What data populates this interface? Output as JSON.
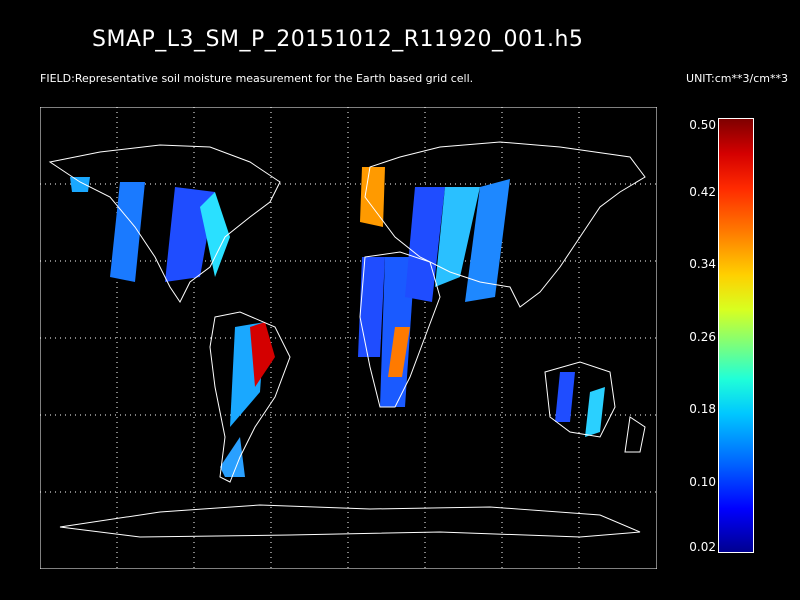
{
  "title": "SMAP_L3_SM_P_20151012_R11920_001.h5",
  "field_label": "FIELD:Representative soil moisture measurement for the Earth based grid cell.",
  "unit_label": "UNIT:cm**3/cm**3",
  "colorbar": {
    "labels": [
      "0.50",
      "0.42",
      "0.34",
      "0.26",
      "0.18",
      "0.10",
      "0.02"
    ],
    "colors": {
      "max": "#7f0000",
      "mid": "#ffd000",
      "min": "#000090"
    }
  },
  "map": {
    "background": "#000000",
    "coastline_color": "#ffffff",
    "grid": "dotted lat/lon graticule",
    "legend": "right"
  }
}
